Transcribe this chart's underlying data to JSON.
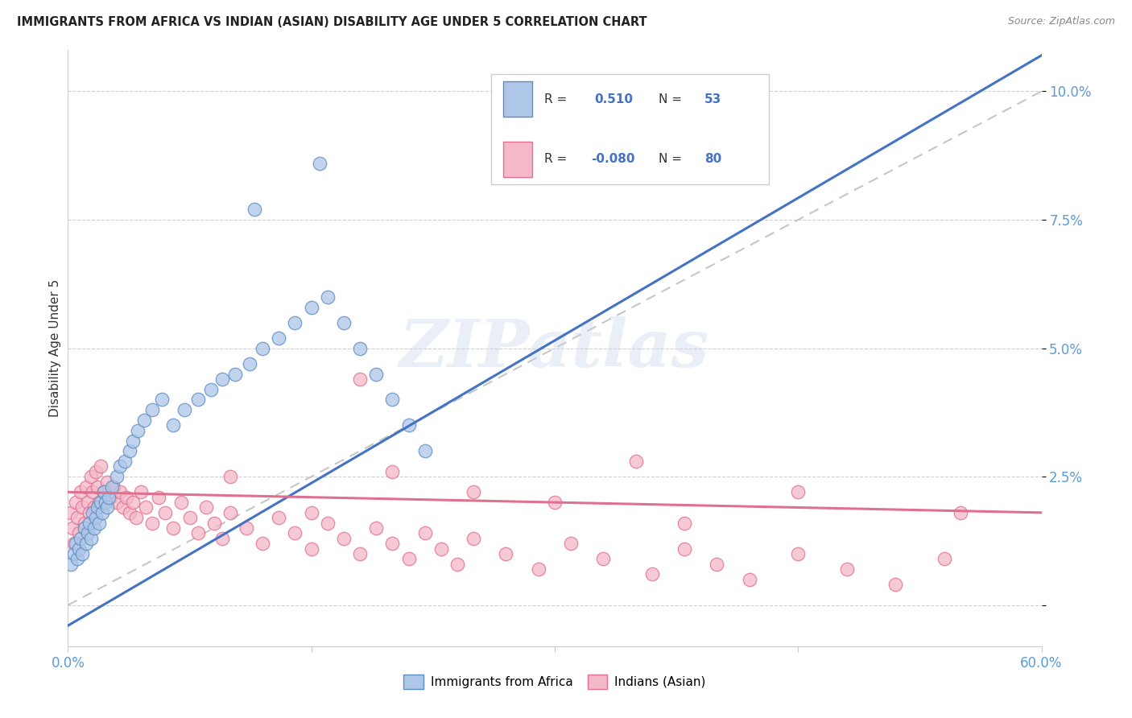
{
  "title": "IMMIGRANTS FROM AFRICA VS INDIAN (ASIAN) DISABILITY AGE UNDER 5 CORRELATION CHART",
  "source": "Source: ZipAtlas.com",
  "ylabel": "Disability Age Under 5",
  "color_blue_fill": "#aec6e8",
  "color_blue_edge": "#5b8ec4",
  "color_blue_line": "#4472C4",
  "color_pink_fill": "#f5b8c8",
  "color_pink_edge": "#e07090",
  "color_pink_line": "#e07090",
  "color_dashed": "#c0c0c0",
  "watermark": "ZIPatlas",
  "xlim": [
    0.0,
    0.6
  ],
  "ylim": [
    -0.008,
    0.108
  ],
  "yticks": [
    0.0,
    0.025,
    0.05,
    0.075,
    0.1
  ],
  "ytick_labels": [
    "",
    "2.5%",
    "5.0%",
    "7.5%",
    "10.0%"
  ],
  "legend_label_africa": "Immigrants from Africa",
  "legend_label_indian": "Indians (Asian)",
  "africa_x": [
    0.002,
    0.004,
    0.005,
    0.006,
    0.007,
    0.008,
    0.009,
    0.01,
    0.011,
    0.012,
    0.013,
    0.014,
    0.015,
    0.016,
    0.017,
    0.018,
    0.019,
    0.02,
    0.021,
    0.022,
    0.023,
    0.024,
    0.025,
    0.027,
    0.03,
    0.032,
    0.035,
    0.038,
    0.04,
    0.043,
    0.047,
    0.052,
    0.058,
    0.065,
    0.072,
    0.08,
    0.088,
    0.095,
    0.103,
    0.112,
    0.12,
    0.13,
    0.14,
    0.15,
    0.16,
    0.17,
    0.18,
    0.19,
    0.2,
    0.21,
    0.22,
    0.115,
    0.155
  ],
  "africa_y": [
    0.008,
    0.01,
    0.012,
    0.009,
    0.011,
    0.013,
    0.01,
    0.015,
    0.012,
    0.014,
    0.016,
    0.013,
    0.018,
    0.015,
    0.017,
    0.019,
    0.016,
    0.02,
    0.018,
    0.022,
    0.02,
    0.019,
    0.021,
    0.023,
    0.025,
    0.027,
    0.028,
    0.03,
    0.032,
    0.034,
    0.036,
    0.038,
    0.04,
    0.035,
    0.038,
    0.04,
    0.042,
    0.044,
    0.045,
    0.047,
    0.05,
    0.052,
    0.055,
    0.058,
    0.06,
    0.055,
    0.05,
    0.045,
    0.04,
    0.035,
    0.03,
    0.077,
    0.086
  ],
  "indian_x": [
    0.002,
    0.003,
    0.004,
    0.005,
    0.006,
    0.007,
    0.008,
    0.009,
    0.01,
    0.011,
    0.012,
    0.013,
    0.014,
    0.015,
    0.016,
    0.017,
    0.018,
    0.019,
    0.02,
    0.022,
    0.024,
    0.026,
    0.028,
    0.03,
    0.032,
    0.034,
    0.036,
    0.038,
    0.04,
    0.042,
    0.045,
    0.048,
    0.052,
    0.056,
    0.06,
    0.065,
    0.07,
    0.075,
    0.08,
    0.085,
    0.09,
    0.095,
    0.1,
    0.11,
    0.12,
    0.13,
    0.14,
    0.15,
    0.16,
    0.17,
    0.18,
    0.19,
    0.2,
    0.21,
    0.22,
    0.23,
    0.24,
    0.25,
    0.27,
    0.29,
    0.31,
    0.33,
    0.36,
    0.38,
    0.4,
    0.42,
    0.45,
    0.48,
    0.51,
    0.54,
    0.18,
    0.2,
    0.35,
    0.45,
    0.3,
    0.15,
    0.1,
    0.25,
    0.38,
    0.55
  ],
  "indian_y": [
    0.018,
    0.015,
    0.012,
    0.02,
    0.017,
    0.014,
    0.022,
    0.019,
    0.016,
    0.023,
    0.02,
    0.018,
    0.025,
    0.022,
    0.019,
    0.026,
    0.023,
    0.02,
    0.027,
    0.022,
    0.024,
    0.021,
    0.023,
    0.02,
    0.022,
    0.019,
    0.021,
    0.018,
    0.02,
    0.017,
    0.022,
    0.019,
    0.016,
    0.021,
    0.018,
    0.015,
    0.02,
    0.017,
    0.014,
    0.019,
    0.016,
    0.013,
    0.018,
    0.015,
    0.012,
    0.017,
    0.014,
    0.011,
    0.016,
    0.013,
    0.01,
    0.015,
    0.012,
    0.009,
    0.014,
    0.011,
    0.008,
    0.013,
    0.01,
    0.007,
    0.012,
    0.009,
    0.006,
    0.011,
    0.008,
    0.005,
    0.01,
    0.007,
    0.004,
    0.009,
    0.044,
    0.026,
    0.028,
    0.022,
    0.02,
    0.018,
    0.025,
    0.022,
    0.016,
    0.018
  ]
}
